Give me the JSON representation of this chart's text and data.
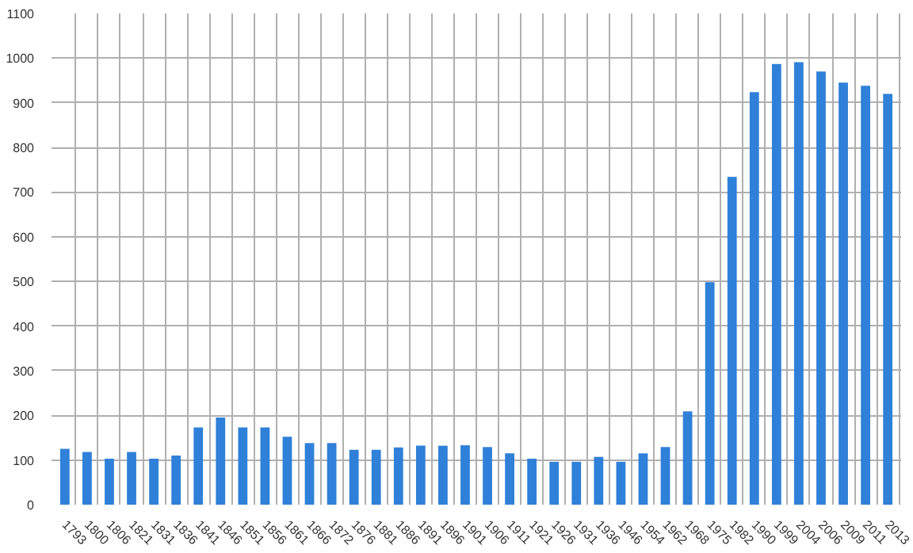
{
  "chart_data": {
    "type": "bar",
    "categories": [
      "1793",
      "1800",
      "1806",
      "1821",
      "1831",
      "1836",
      "1841",
      "1846",
      "1851",
      "1856",
      "1861",
      "1866",
      "1872",
      "1876",
      "1881",
      "1886",
      "1891",
      "1896",
      "1901",
      "1906",
      "1911",
      "1921",
      "1926",
      "1931",
      "1936",
      "1946",
      "1954",
      "1962",
      "1968",
      "1975",
      "1982",
      "1990",
      "1999",
      "2004",
      "2006",
      "2009",
      "2011",
      "2013"
    ],
    "values": [
      125,
      118,
      103,
      118,
      103,
      110,
      173,
      195,
      173,
      173,
      152,
      138,
      138,
      123,
      123,
      128,
      132,
      132,
      133,
      129,
      115,
      103,
      96,
      96,
      107,
      96,
      115,
      129,
      209,
      498,
      734,
      924,
      987,
      991,
      970,
      945,
      938,
      920
    ],
    "color": "#2f80d8",
    "ylim": [
      0,
      1100
    ],
    "yticks": [
      0,
      100,
      200,
      300,
      400,
      500,
      600,
      700,
      800,
      900,
      1000,
      1100
    ],
    "grid": true
  }
}
